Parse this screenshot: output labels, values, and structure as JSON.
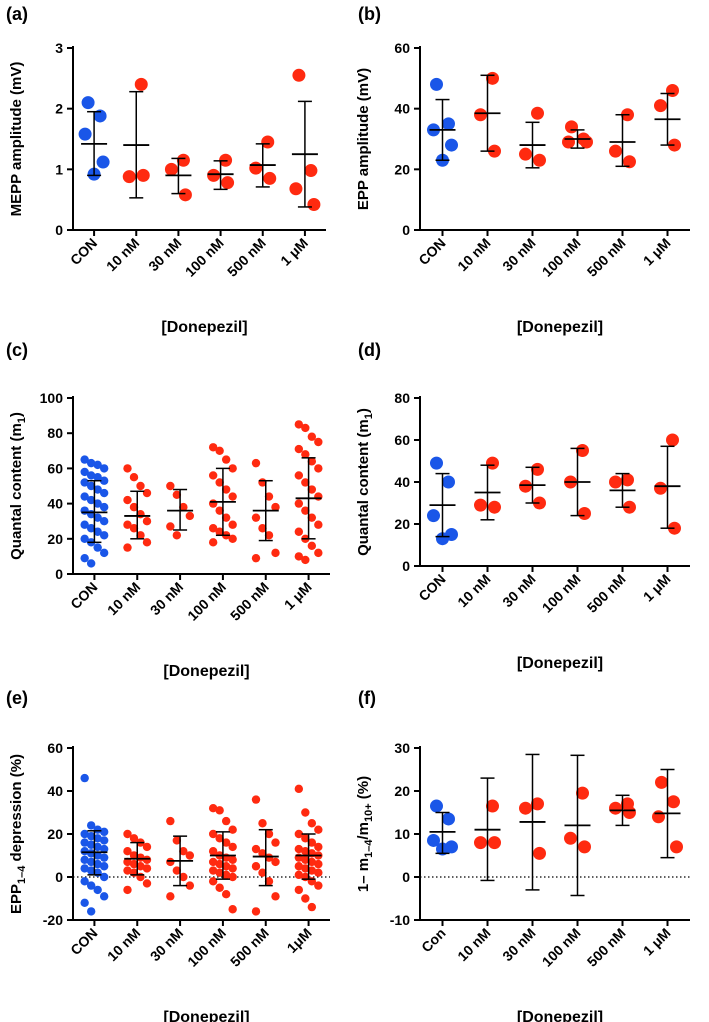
{
  "colors": {
    "control": "#1a56e8",
    "treated": "#ff2a10",
    "axis": "#000000"
  },
  "chart_data": [
    {
      "panel": "(a)",
      "type": "scatter",
      "ylabel": "MEPP amplitude (mV)",
      "xlabel": "[Donepezil]",
      "categories": [
        "CON",
        "10 nM",
        "30 nM",
        "100 nM",
        "500 nM",
        "1 μM"
      ],
      "ylim": [
        0,
        3
      ],
      "yticks": [
        0,
        1,
        2,
        3
      ],
      "zero_line": false,
      "groups": [
        {
          "points": [
            2.1,
            1.88,
            1.58,
            1.12,
            0.92
          ],
          "mean": 1.42,
          "sd_low": 0.9,
          "sd_high": 1.95
        },
        {
          "points": [
            2.4,
            0.88,
            0.9
          ],
          "mean": 1.4,
          "sd_low": 0.53,
          "sd_high": 2.28
        },
        {
          "points": [
            1.15,
            1.0,
            0.58
          ],
          "mean": 0.9,
          "sd_low": 0.6,
          "sd_high": 1.18
        },
        {
          "points": [
            1.15,
            0.9,
            0.78
          ],
          "mean": 0.92,
          "sd_low": 0.67,
          "sd_high": 1.14
        },
        {
          "points": [
            1.45,
            1.02,
            0.85
          ],
          "mean": 1.07,
          "sd_low": 0.71,
          "sd_high": 1.42
        },
        {
          "points": [
            2.55,
            0.98,
            0.68,
            0.42
          ],
          "mean": 1.25,
          "sd_low": 0.38,
          "sd_high": 2.12
        }
      ]
    },
    {
      "panel": "(b)",
      "type": "scatter",
      "ylabel": "EPP amplitude (mV)",
      "xlabel": "[Donepezil]",
      "categories": [
        "CON",
        "10 nM",
        "30 nM",
        "100 nM",
        "500 nM",
        "1 μM"
      ],
      "ylim": [
        0,
        60
      ],
      "yticks": [
        0,
        20,
        40,
        60
      ],
      "zero_line": false,
      "groups": [
        {
          "points": [
            48,
            35,
            33,
            28,
            23
          ],
          "mean": 33,
          "sd_low": 23,
          "sd_high": 43
        },
        {
          "points": [
            50,
            38,
            26
          ],
          "mean": 38.5,
          "sd_low": 26,
          "sd_high": 51
        },
        {
          "points": [
            38.5,
            25,
            23
          ],
          "mean": 28,
          "sd_low": 20.5,
          "sd_high": 35.5
        },
        {
          "points": [
            34,
            30,
            29,
            29
          ],
          "mean": 30,
          "sd_low": 27,
          "sd_high": 33
        },
        {
          "points": [
            38,
            26,
            22.5
          ],
          "mean": 29,
          "sd_low": 21,
          "sd_high": 38
        },
        {
          "points": [
            46,
            41,
            28
          ],
          "mean": 36.5,
          "sd_low": 28,
          "sd_high": 45
        }
      ]
    },
    {
      "panel": "(c)",
      "type": "scatter",
      "ylabel": "Quantal content (m1)",
      "xlabel": "[Donepezil]",
      "categories": [
        "CON",
        "10 nM",
        "30 nM",
        "100 nM",
        "500 nM",
        "1 μM"
      ],
      "ylim": [
        0,
        100
      ],
      "yticks": [
        0,
        20,
        40,
        60,
        80,
        100
      ],
      "zero_line": false,
      "groups": [
        {
          "points": [
            65,
            63,
            62,
            60,
            58,
            56,
            55,
            53,
            52,
            50,
            48,
            46,
            44,
            42,
            40,
            38,
            36,
            34,
            32,
            30,
            28,
            26,
            24,
            22,
            20,
            18,
            15,
            12,
            9,
            6
          ],
          "mean": 35,
          "sd_low": 18,
          "sd_high": 53
        },
        {
          "points": [
            60,
            55,
            50,
            46,
            42,
            38,
            34,
            30,
            28,
            26,
            22,
            18,
            15
          ],
          "mean": 33,
          "sd_low": 20,
          "sd_high": 47
        },
        {
          "points": [
            50,
            45,
            38,
            33,
            27,
            22
          ],
          "mean": 36,
          "sd_low": 25,
          "sd_high": 48
        },
        {
          "points": [
            72,
            70,
            65,
            60,
            56,
            52,
            48,
            44,
            40,
            36,
            32,
            28,
            26,
            24,
            22,
            20,
            18
          ],
          "mean": 41,
          "sd_low": 22,
          "sd_high": 60
        },
        {
          "points": [
            63,
            52,
            44,
            38,
            32,
            26,
            22,
            12,
            9
          ],
          "mean": 36,
          "sd_low": 19,
          "sd_high": 53
        },
        {
          "points": [
            85,
            83,
            78,
            75,
            71,
            68,
            64,
            60,
            56,
            52,
            48,
            44,
            40,
            36,
            32,
            28,
            24,
            20,
            16,
            12,
            10,
            8
          ],
          "mean": 43,
          "sd_low": 20,
          "sd_high": 66
        }
      ]
    },
    {
      "panel": "(d)",
      "type": "scatter",
      "ylabel": "Quantal content (m1)",
      "xlabel": "[Donepezil]",
      "categories": [
        "CON",
        "10 nM",
        "30 nM",
        "100 nM",
        "500 nM",
        "1 μM"
      ],
      "ylim": [
        0,
        80
      ],
      "yticks": [
        0,
        20,
        40,
        60,
        80
      ],
      "zero_line": false,
      "groups": [
        {
          "points": [
            49,
            40,
            24,
            15,
            13
          ],
          "mean": 29,
          "sd_low": 14,
          "sd_high": 44
        },
        {
          "points": [
            49,
            29,
            28
          ],
          "mean": 35,
          "sd_low": 22,
          "sd_high": 48
        },
        {
          "points": [
            46,
            38,
            30
          ],
          "mean": 38.5,
          "sd_low": 30,
          "sd_high": 47
        },
        {
          "points": [
            55,
            40,
            25
          ],
          "mean": 40,
          "sd_low": 24,
          "sd_high": 56
        },
        {
          "points": [
            41,
            40,
            28
          ],
          "mean": 36,
          "sd_low": 28,
          "sd_high": 44
        },
        {
          "points": [
            60,
            37,
            18
          ],
          "mean": 38,
          "sd_low": 18,
          "sd_high": 57
        }
      ]
    },
    {
      "panel": "(e)",
      "type": "scatter",
      "ylabel": "EPP1–4 depression (%)",
      "xlabel": "[Donepezil]",
      "categories": [
        "CON",
        "10 nM",
        "30 nM",
        "100 nM",
        "500 nM",
        "1μM"
      ],
      "ylim": [
        -20,
        60
      ],
      "yticks": [
        -20,
        0,
        20,
        40,
        60
      ],
      "zero_line": true,
      "groups": [
        {
          "points": [
            46,
            24,
            22,
            21,
            20,
            19,
            18,
            17,
            16,
            15,
            14,
            13,
            12,
            11,
            10,
            9,
            8,
            7,
            6,
            5,
            4,
            3,
            2,
            0,
            -2,
            -4,
            -6,
            -9,
            -12,
            -16
          ],
          "mean": 11.5,
          "sd_low": 1,
          "sd_high": 21.5
        },
        {
          "points": [
            20,
            18,
            16,
            14,
            12,
            10,
            9,
            8,
            7,
            6,
            5,
            4,
            3,
            2,
            0,
            -3,
            -6
          ],
          "mean": 8.5,
          "sd_low": 1,
          "sd_high": 16
        },
        {
          "points": [
            26,
            17,
            12,
            10,
            7,
            3,
            0,
            -4,
            -9
          ],
          "mean": 7.5,
          "sd_low": -4,
          "sd_high": 19
        },
        {
          "points": [
            32,
            31,
            26,
            22,
            20,
            18,
            16,
            14,
            12,
            10,
            9,
            8,
            7,
            6,
            5,
            4,
            3,
            2,
            1,
            0,
            -2,
            -5,
            -8,
            -15
          ],
          "mean": 10,
          "sd_low": -1,
          "sd_high": 21
        },
        {
          "points": [
            36,
            25,
            20,
            16,
            13,
            11,
            9,
            7,
            5,
            2,
            -2,
            -9,
            -16
          ],
          "mean": 9.5,
          "sd_low": -4,
          "sd_high": 22
        },
        {
          "points": [
            41,
            30,
            25,
            22,
            20,
            18,
            16,
            14,
            13,
            12,
            11,
            10,
            9,
            8,
            7,
            6,
            5,
            4,
            3,
            2,
            1,
            0,
            -2,
            -4,
            -6,
            -10,
            -14
          ],
          "mean": 10,
          "sd_low": -1,
          "sd_high": 20
        }
      ]
    },
    {
      "panel": "(f)",
      "type": "scatter",
      "ylabel": "1– m1-4/m10+ (%)",
      "xlabel": "[Donepezil]",
      "categories": [
        "Con",
        "10 nM",
        "30 nM",
        "100 nM",
        "500 nM",
        "1 μM"
      ],
      "ylim": [
        -10,
        30
      ],
      "yticks": [
        -10,
        0,
        10,
        20,
        30
      ],
      "zero_line": true,
      "groups": [
        {
          "points": [
            16.5,
            13.5,
            8.5,
            7,
            6.5
          ],
          "mean": 10.5,
          "sd_low": 5.5,
          "sd_high": 15
        },
        {
          "points": [
            16.5,
            8,
            8
          ],
          "mean": 11,
          "sd_low": -0.8,
          "sd_high": 23
        },
        {
          "points": [
            17,
            16,
            5.5
          ],
          "mean": 12.8,
          "sd_low": -3,
          "sd_high": 28.5
        },
        {
          "points": [
            19.5,
            9,
            7
          ],
          "mean": 12,
          "sd_low": -4.3,
          "sd_high": 28.3
        },
        {
          "points": [
            17,
            16,
            15
          ],
          "mean": 15.5,
          "sd_low": 12,
          "sd_high": 19
        },
        {
          "points": [
            22,
            17.5,
            14,
            7
          ],
          "mean": 14.8,
          "sd_low": 4.5,
          "sd_high": 25
        }
      ]
    }
  ]
}
